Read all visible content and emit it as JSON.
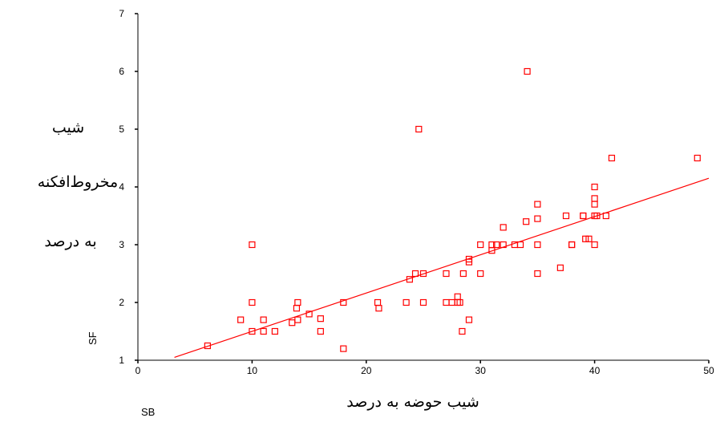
{
  "ylabel_lines": [
    "شیب",
    "مخروط‌افکنه",
    "به درصد"
  ],
  "ylabel_code": "SF",
  "xlabel": "شیب حوضه به درصد",
  "xlabel_code": "SB",
  "chart_data": {
    "type": "scatter",
    "xlim": [
      0,
      50
    ],
    "ylim": [
      1,
      7
    ],
    "x_ticks": [
      "0",
      "10",
      "20",
      "30",
      "40",
      "50"
    ],
    "y_ticks": [
      "1",
      "2",
      "3",
      "4",
      "5",
      "6",
      "7"
    ],
    "grid": false,
    "marker_color": "#ff0000",
    "series": [
      {
        "points": [
          [
            6.1,
            1.25
          ],
          [
            9,
            1.7
          ],
          [
            10,
            1.5
          ],
          [
            10,
            2.0
          ],
          [
            10,
            3.0
          ],
          [
            11,
            1.5
          ],
          [
            11,
            1.7
          ],
          [
            12,
            1.5
          ],
          [
            13.5,
            1.65
          ],
          [
            13.9,
            1.9
          ],
          [
            14,
            1.7
          ],
          [
            14,
            2.0
          ],
          [
            15,
            1.8
          ],
          [
            16,
            1.5
          ],
          [
            16,
            1.72
          ],
          [
            18,
            2.0
          ],
          [
            18,
            1.2
          ],
          [
            21,
            2.0
          ],
          [
            21.1,
            1.9
          ],
          [
            23.5,
            2.0
          ],
          [
            23.8,
            2.4
          ],
          [
            24.3,
            2.5
          ],
          [
            24.6,
            5.0
          ],
          [
            25,
            2.5
          ],
          [
            25,
            2.0
          ],
          [
            27,
            2.5
          ],
          [
            27,
            2.0
          ],
          [
            27.5,
            2.0
          ],
          [
            28,
            2.0
          ],
          [
            28,
            2.1
          ],
          [
            28.2,
            2.0
          ],
          [
            28.4,
            1.5
          ],
          [
            28.5,
            2.5
          ],
          [
            29,
            2.7
          ],
          [
            29,
            2.75
          ],
          [
            29,
            1.7
          ],
          [
            30,
            3.0
          ],
          [
            30,
            2.5
          ],
          [
            31,
            3.0
          ],
          [
            31,
            2.9
          ],
          [
            31.4,
            3.0
          ],
          [
            32,
            3.0
          ],
          [
            32,
            3.3
          ],
          [
            33,
            3.0
          ],
          [
            33.5,
            3.0
          ],
          [
            34,
            3.4
          ],
          [
            34.1,
            6.0
          ],
          [
            35,
            3.0
          ],
          [
            35,
            3.7
          ],
          [
            35,
            3.45
          ],
          [
            35,
            2.5
          ],
          [
            37,
            2.6
          ],
          [
            37.5,
            3.5
          ],
          [
            38,
            3.0
          ],
          [
            38,
            3.0
          ],
          [
            39,
            3.5
          ],
          [
            39,
            3.5
          ],
          [
            39.2,
            3.1
          ],
          [
            39.5,
            3.1
          ],
          [
            40,
            3.5
          ],
          [
            40,
            3.7
          ],
          [
            40,
            3.8
          ],
          [
            40,
            4.0
          ],
          [
            40,
            3.0
          ],
          [
            40.2,
            3.5
          ],
          [
            41,
            3.5
          ],
          [
            41.5,
            4.5
          ],
          [
            49,
            4.5
          ]
        ]
      }
    ],
    "trendline": {
      "x": [
        3.2,
        50
      ],
      "y": [
        1.05,
        4.15
      ],
      "color": "#ff0000"
    }
  }
}
